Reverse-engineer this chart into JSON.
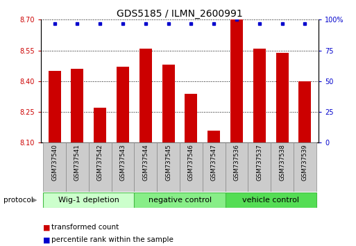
{
  "title": "GDS5185 / ILMN_2600991",
  "samples": [
    "GSM737540",
    "GSM737541",
    "GSM737542",
    "GSM737543",
    "GSM737544",
    "GSM737545",
    "GSM737546",
    "GSM737547",
    "GSM737536",
    "GSM737537",
    "GSM737538",
    "GSM737539"
  ],
  "bar_values": [
    8.45,
    8.46,
    8.27,
    8.47,
    8.56,
    8.48,
    8.34,
    8.16,
    8.7,
    8.56,
    8.54,
    8.4
  ],
  "percentile_values": [
    97,
    97,
    97,
    97,
    97,
    97,
    97,
    97,
    100,
    97,
    97,
    97
  ],
  "ylim_left": [
    8.1,
    8.7
  ],
  "ylim_right": [
    0,
    100
  ],
  "yticks_left": [
    8.1,
    8.25,
    8.4,
    8.55,
    8.7
  ],
  "yticks_right": [
    0,
    25,
    50,
    75,
    100
  ],
  "bar_color": "#cc0000",
  "dot_color": "#0000cc",
  "bar_bottom": 8.1,
  "groups": [
    {
      "label": "Wig-1 depletion",
      "indices": [
        0,
        1,
        2,
        3
      ],
      "color": "#ccffcc"
    },
    {
      "label": "negative control",
      "indices": [
        4,
        5,
        6,
        7
      ],
      "color": "#88ee88"
    },
    {
      "label": "vehicle control",
      "indices": [
        8,
        9,
        10,
        11
      ],
      "color": "#55dd55"
    }
  ],
  "protocol_label": "protocol",
  "legend_items": [
    {
      "color": "#cc0000",
      "label": "transformed count"
    },
    {
      "color": "#0000cc",
      "label": "percentile rank within the sample"
    }
  ],
  "tick_box_color": "#cccccc",
  "grid_linestyle": "dotted",
  "title_fontsize": 10,
  "tick_fontsize": 7,
  "label_fontsize": 7.5,
  "axis_label_color_left": "#cc0000",
  "axis_label_color_right": "#0000cc",
  "group_edge_color": "#44bb44",
  "group_fontsize": 8
}
